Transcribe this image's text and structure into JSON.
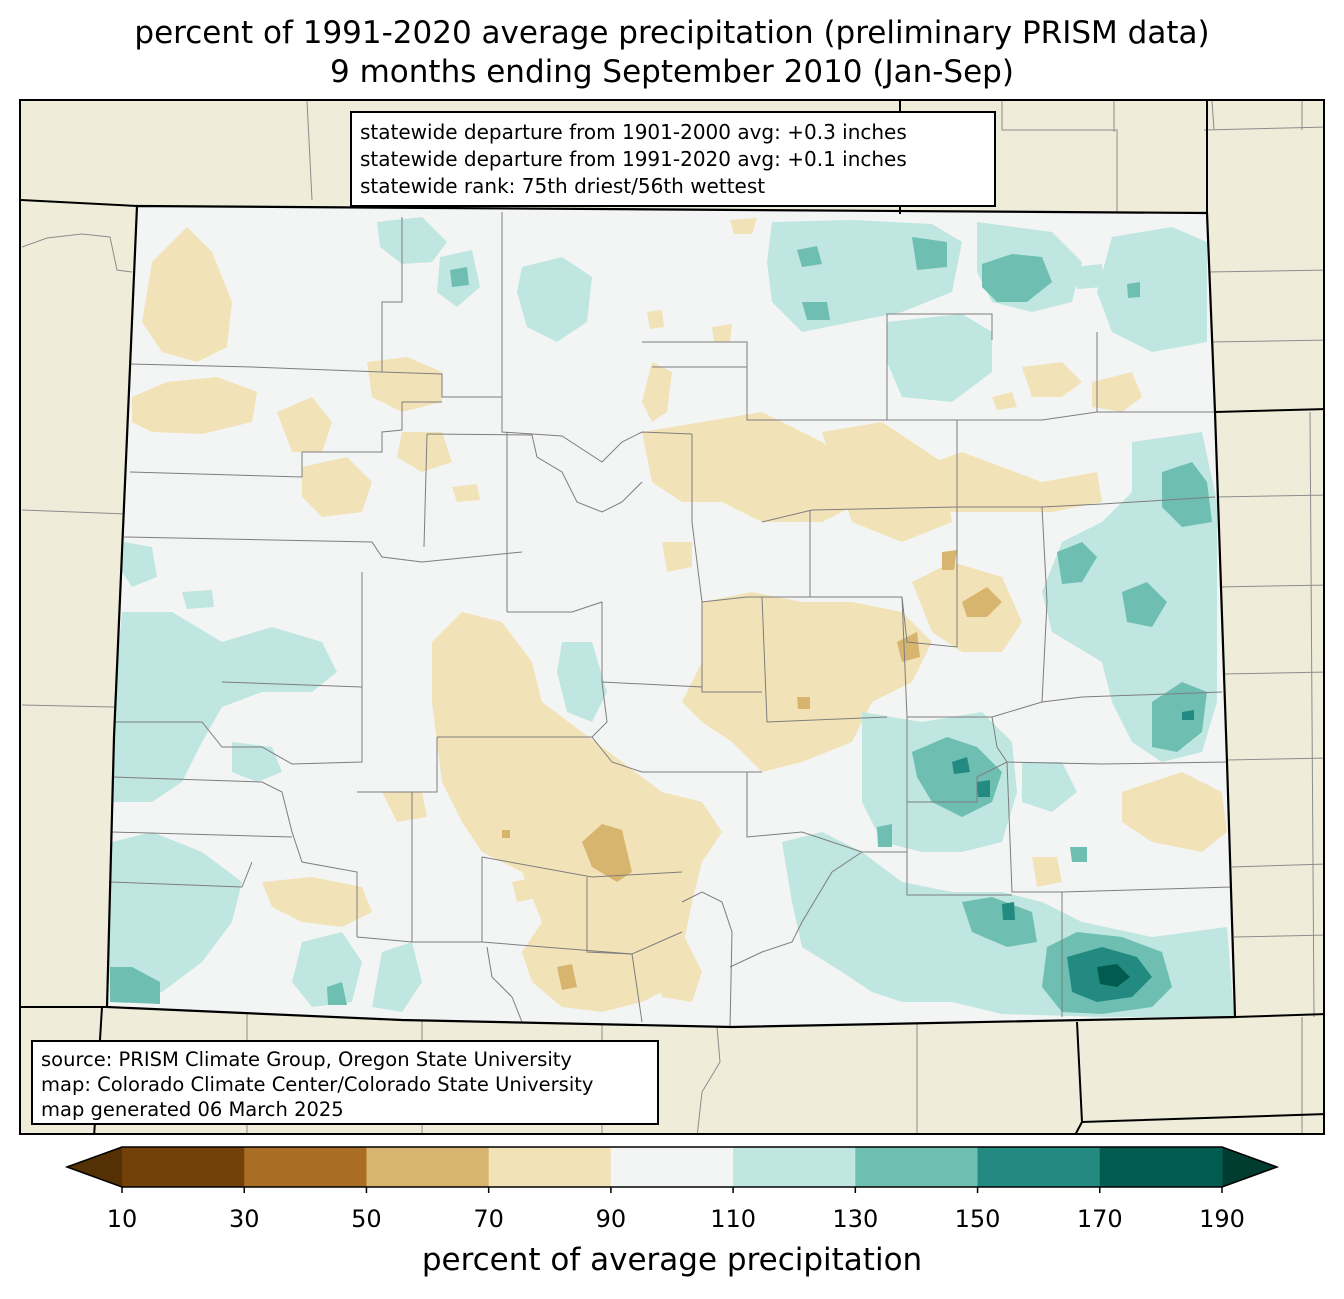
{
  "title": {
    "line1": "percent of 1991-2020 average precipitation (preliminary PRISM data)",
    "line2": "9 months ending September 2010 (Jan-Sep)"
  },
  "stats": {
    "line1": "statewide departure from 1901-2000 avg: +0.3 inches",
    "line2": "statewide departure from 1991-2020 avg: +0.1 inches",
    "line3": "statewide rank: 75th driest/56th wettest"
  },
  "source": {
    "line1": "source: PRISM Climate Group, Oregon State University",
    "line2": "map: Colorado Climate Center/Colorado State University",
    "line3": "map generated 06 March 2025"
  },
  "colorbar": {
    "label": "percent of average precipitation",
    "ticks": [
      "10",
      "30",
      "50",
      "70",
      "90",
      "110",
      "130",
      "150",
      "170",
      "190"
    ],
    "under_color": "#543005",
    "over_color": "#003c30",
    "bins": [
      {
        "range": "10-30",
        "color": "#744009"
      },
      {
        "range": "30-50",
        "color": "#a96d23"
      },
      {
        "range": "50-70",
        "color": "#d8b56f"
      },
      {
        "range": "70-90",
        "color": "#f2e2b7"
      },
      {
        "range": "90-110",
        "color": "#f3f5f4"
      },
      {
        "range": "110-130",
        "color": "#bfe6e0"
      },
      {
        "range": "130-150",
        "color": "#6ebfb2"
      },
      {
        "range": "150-170",
        "color": "#228a80"
      },
      {
        "range": "170-190",
        "color": "#015c4f"
      }
    ]
  },
  "colors": {
    "land_background": "#efedda",
    "state_border": "#000000",
    "county_lines": "#808080"
  }
}
